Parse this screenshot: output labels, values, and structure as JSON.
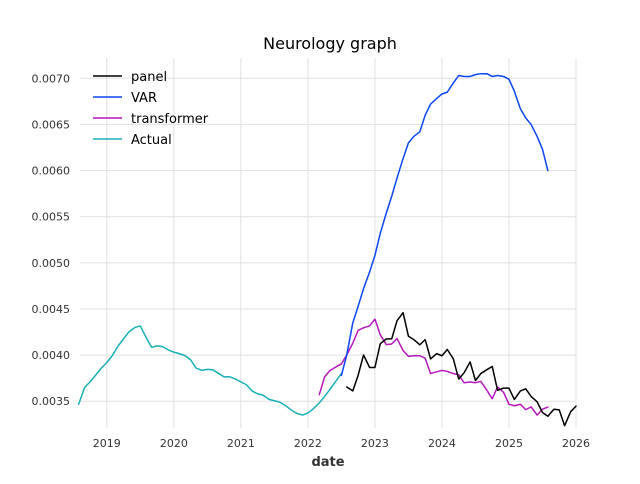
{
  "chart_data": {
    "type": "line",
    "title": "Neurology graph",
    "xlabel": "date",
    "ylabel": "",
    "xlim": [
      2018.6,
      2026.0
    ],
    "ylim": [
      0.00321,
      0.00722
    ],
    "grid": true,
    "legend_position": "top-left",
    "x_ticks": [
      {
        "value": 2019,
        "label": "2019"
      },
      {
        "value": 2020,
        "label": "2020"
      },
      {
        "value": 2021,
        "label": "2021"
      },
      {
        "value": 2022,
        "label": "2022"
      },
      {
        "value": 2023,
        "label": "2023"
      },
      {
        "value": 2024,
        "label": "2024"
      },
      {
        "value": 2025,
        "label": "2025"
      },
      {
        "value": 2026,
        "label": "2026"
      }
    ],
    "y_ticks": [
      {
        "value": 0.0035,
        "label": "0.0035"
      },
      {
        "value": 0.004,
        "label": "0.0040"
      },
      {
        "value": 0.0045,
        "label": "0.0045"
      },
      {
        "value": 0.005,
        "label": "0.0050"
      },
      {
        "value": 0.0055,
        "label": "0.0055"
      },
      {
        "value": 0.006,
        "label": "0.0060"
      },
      {
        "value": 0.0065,
        "label": "0.0065"
      },
      {
        "value": 0.007,
        "label": "0.0070"
      }
    ],
    "series": [
      {
        "name": "panel",
        "color": "#000000",
        "points": [
          [
            2022.58,
            0.003655
          ],
          [
            2022.67,
            0.003612
          ],
          [
            2022.75,
            0.003782
          ],
          [
            2022.83,
            0.004002
          ],
          [
            2022.92,
            0.003866
          ],
          [
            2023.0,
            0.003866
          ],
          [
            2023.08,
            0.004124
          ],
          [
            2023.17,
            0.004176
          ],
          [
            2023.25,
            0.004176
          ],
          [
            2023.33,
            0.004373
          ],
          [
            2023.42,
            0.00446
          ],
          [
            2023.5,
            0.004205
          ],
          [
            2023.58,
            0.004168
          ],
          [
            2023.67,
            0.004112
          ],
          [
            2023.75,
            0.004168
          ],
          [
            2023.83,
            0.003959
          ],
          [
            2023.92,
            0.004016
          ],
          [
            2024.0,
            0.003993
          ],
          [
            2024.08,
            0.004061
          ],
          [
            2024.17,
            0.003959
          ],
          [
            2024.25,
            0.00374
          ],
          [
            2024.33,
            0.003808
          ],
          [
            2024.42,
            0.003926
          ],
          [
            2024.5,
            0.003725
          ],
          [
            2024.58,
            0.0038
          ],
          [
            2024.67,
            0.003842
          ],
          [
            2024.75,
            0.003877
          ],
          [
            2024.83,
            0.003619
          ],
          [
            2024.92,
            0.003642
          ],
          [
            2025.0,
            0.003642
          ],
          [
            2025.08,
            0.00352
          ],
          [
            2025.17,
            0.003612
          ],
          [
            2025.25,
            0.003635
          ],
          [
            2025.33,
            0.003552
          ],
          [
            2025.42,
            0.003494
          ],
          [
            2025.5,
            0.003378
          ],
          [
            2025.58,
            0.003337
          ],
          [
            2025.67,
            0.003413
          ],
          [
            2025.75,
            0.003406
          ],
          [
            2025.83,
            0.003235
          ],
          [
            2025.92,
            0.003387
          ],
          [
            2026.0,
            0.003447
          ]
        ]
      },
      {
        "name": "VAR",
        "color": "#0b46f2",
        "points": [
          [
            2022.5,
            0.00378
          ],
          [
            2022.58,
            0.004002
          ],
          [
            2022.67,
            0.00435
          ],
          [
            2022.75,
            0.00453
          ],
          [
            2022.83,
            0.00472
          ],
          [
            2022.92,
            0.0049
          ],
          [
            2023.0,
            0.00508
          ],
          [
            2023.08,
            0.00532
          ],
          [
            2023.17,
            0.00554
          ],
          [
            2023.25,
            0.00572
          ],
          [
            2023.33,
            0.00592
          ],
          [
            2023.42,
            0.00613
          ],
          [
            2023.5,
            0.0063
          ],
          [
            2023.58,
            0.00637
          ],
          [
            2023.67,
            0.00642
          ],
          [
            2023.75,
            0.0066
          ],
          [
            2023.83,
            0.00672
          ],
          [
            2023.92,
            0.00678
          ],
          [
            2024.0,
            0.00683
          ],
          [
            2024.08,
            0.00685
          ],
          [
            2024.17,
            0.00695
          ],
          [
            2024.25,
            0.00703
          ],
          [
            2024.33,
            0.00702
          ],
          [
            2024.42,
            0.00702
          ],
          [
            2024.5,
            0.00704
          ],
          [
            2024.58,
            0.00705
          ],
          [
            2024.67,
            0.00705
          ],
          [
            2024.75,
            0.00702
          ],
          [
            2024.83,
            0.00703
          ],
          [
            2024.92,
            0.00702
          ],
          [
            2025.0,
            0.00699
          ],
          [
            2025.08,
            0.00686
          ],
          [
            2025.17,
            0.00667
          ],
          [
            2025.25,
            0.00657
          ],
          [
            2025.33,
            0.0065
          ],
          [
            2025.42,
            0.00637
          ],
          [
            2025.5,
            0.00623
          ],
          [
            2025.58,
            0.006
          ]
        ]
      },
      {
        "name": "transformer",
        "color": "#b517bd",
        "points": [
          [
            2022.17,
            0.003571
          ],
          [
            2022.25,
            0.003766
          ],
          [
            2022.33,
            0.003833
          ],
          [
            2022.42,
            0.003873
          ],
          [
            2022.5,
            0.003904
          ],
          [
            2022.58,
            0.004002
          ],
          [
            2022.67,
            0.00413
          ],
          [
            2022.75,
            0.004269
          ],
          [
            2022.83,
            0.004296
          ],
          [
            2022.92,
            0.004316
          ],
          [
            2023.0,
            0.00439
          ],
          [
            2023.08,
            0.00422
          ],
          [
            2023.17,
            0.004113
          ],
          [
            2023.25,
            0.00412
          ],
          [
            2023.33,
            0.004179
          ],
          [
            2023.42,
            0.00405
          ],
          [
            2023.5,
            0.003986
          ],
          [
            2023.58,
            0.003993
          ],
          [
            2023.67,
            0.003993
          ],
          [
            2023.75,
            0.003966
          ],
          [
            2023.83,
            0.0038
          ],
          [
            2023.92,
            0.003819
          ],
          [
            2024.0,
            0.003834
          ],
          [
            2024.08,
            0.003823
          ],
          [
            2024.17,
            0.0038
          ],
          [
            2024.25,
            0.003786
          ],
          [
            2024.33,
            0.003701
          ],
          [
            2024.42,
            0.003708
          ],
          [
            2024.5,
            0.003701
          ],
          [
            2024.58,
            0.003716
          ],
          [
            2024.67,
            0.00362
          ],
          [
            2024.75,
            0.003527
          ],
          [
            2024.83,
            0.003655
          ],
          [
            2024.92,
            0.003596
          ],
          [
            2025.0,
            0.003467
          ],
          [
            2025.08,
            0.003451
          ],
          [
            2025.17,
            0.003467
          ],
          [
            2025.25,
            0.003409
          ],
          [
            2025.33,
            0.003439
          ],
          [
            2025.42,
            0.00335
          ],
          [
            2025.5,
            0.003414
          ],
          [
            2025.58,
            0.003437
          ]
        ]
      },
      {
        "name": "Actual",
        "color": "#18b0b5",
        "points": [
          [
            2018.58,
            0.003467
          ],
          [
            2018.67,
            0.00365
          ],
          [
            2018.75,
            0.00371
          ],
          [
            2018.83,
            0.00378
          ],
          [
            2018.92,
            0.00386
          ],
          [
            2019.0,
            0.00392
          ],
          [
            2019.08,
            0.003993
          ],
          [
            2019.17,
            0.0041
          ],
          [
            2019.25,
            0.004176
          ],
          [
            2019.33,
            0.004252
          ],
          [
            2019.42,
            0.0043
          ],
          [
            2019.5,
            0.004316
          ],
          [
            2019.58,
            0.0042
          ],
          [
            2019.67,
            0.004084
          ],
          [
            2019.75,
            0.0041
          ],
          [
            2019.83,
            0.004092
          ],
          [
            2019.92,
            0.004055
          ],
          [
            2020.0,
            0.004032
          ],
          [
            2020.08,
            0.004016
          ],
          [
            2020.17,
            0.003993
          ],
          [
            2020.25,
            0.00395
          ],
          [
            2020.33,
            0.00386
          ],
          [
            2020.42,
            0.003834
          ],
          [
            2020.5,
            0.003845
          ],
          [
            2020.58,
            0.003842
          ],
          [
            2020.67,
            0.0038
          ],
          [
            2020.75,
            0.003764
          ],
          [
            2020.83,
            0.003766
          ],
          [
            2020.92,
            0.00374
          ],
          [
            2021.0,
            0.00371
          ],
          [
            2021.08,
            0.00368
          ],
          [
            2021.17,
            0.00361
          ],
          [
            2021.25,
            0.00358
          ],
          [
            2021.33,
            0.003566
          ],
          [
            2021.42,
            0.00352
          ],
          [
            2021.5,
            0.003505
          ],
          [
            2021.58,
            0.00349
          ],
          [
            2021.67,
            0.003451
          ],
          [
            2021.75,
            0.003406
          ],
          [
            2021.83,
            0.00337
          ],
          [
            2021.92,
            0.00335
          ],
          [
            2022.0,
            0.003372
          ],
          [
            2022.08,
            0.003418
          ],
          [
            2022.17,
            0.003482
          ],
          [
            2022.25,
            0.003552
          ],
          [
            2022.33,
            0.00363
          ],
          [
            2022.42,
            0.00372
          ],
          [
            2022.5,
            0.0038
          ]
        ]
      }
    ]
  }
}
